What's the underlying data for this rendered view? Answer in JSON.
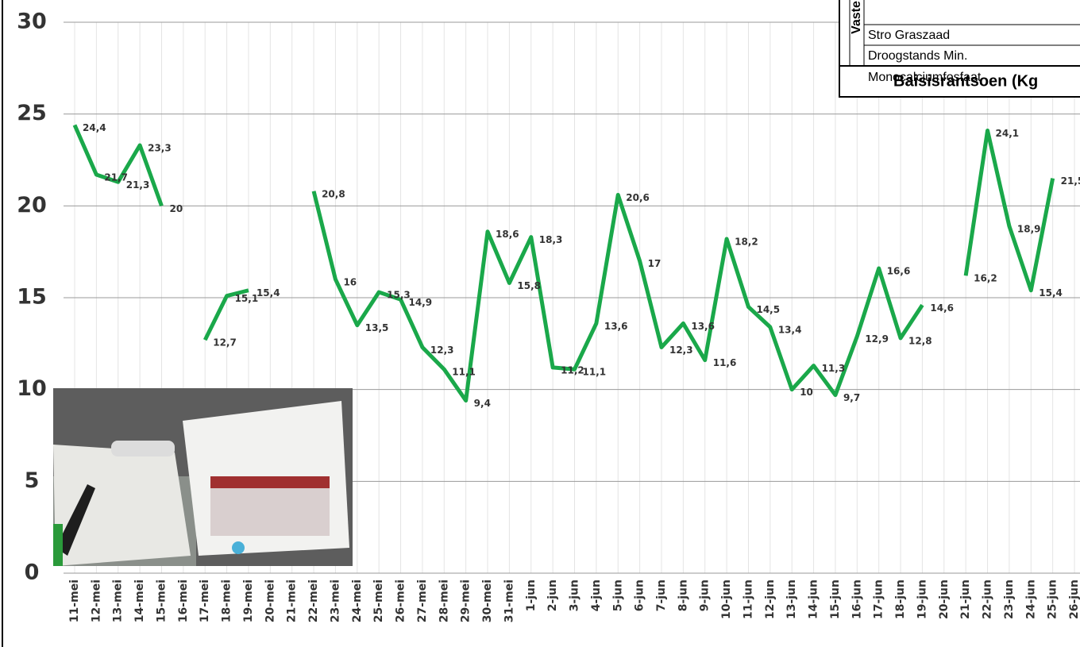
{
  "chart_data": {
    "type": "line",
    "categories": [
      "11-mei",
      "12-mei",
      "13-mei",
      "14-mei",
      "15-mei",
      "16-mei",
      "17-mei",
      "18-mei",
      "19-mei",
      "20-mei",
      "21-mei",
      "22-mei",
      "23-mei",
      "24-mei",
      "25-mei",
      "26-mei",
      "27-mei",
      "28-mei",
      "29-mei",
      "30-mei",
      "31-mei",
      "1-jun",
      "2-jun",
      "3-jun",
      "4-jun",
      "5-jun",
      "6-jun",
      "7-jun",
      "8-jun",
      "9-jun",
      "10-jun",
      "11-jun",
      "12-jun",
      "13-jun",
      "14-jun",
      "15-jun",
      "16-jun",
      "17-jun",
      "18-jun",
      "19-jun",
      "20-jun",
      "21-jun",
      "22-jun",
      "23-jun",
      "24-jun",
      "25-jun",
      "26-jun"
    ],
    "values": [
      24.4,
      21.7,
      21.3,
      23.3,
      20,
      null,
      12.7,
      15.1,
      15.4,
      null,
      null,
      20.8,
      16,
      13.5,
      15.3,
      14.9,
      12.3,
      11.1,
      9.4,
      18.6,
      15.8,
      18.3,
      11.2,
      11.1,
      13.6,
      20.6,
      17,
      12.3,
      13.6,
      11.6,
      18.2,
      14.5,
      13.4,
      10,
      11.3,
      9.7,
      12.9,
      16.6,
      12.8,
      14.6,
      null,
      16.2,
      24.1,
      18.9,
      15.4,
      21.5,
      null
    ],
    "value_labels": [
      "24,4",
      "21,7",
      "21,3",
      "23,3",
      "20",
      null,
      "12,7",
      "15,1",
      "15,4",
      null,
      null,
      "20,8",
      "16",
      "13,5",
      "15,3",
      "14,9",
      "12,3",
      "11,1",
      "9,4",
      "18,6",
      "15,8",
      "18,3",
      "11,2",
      "11,1",
      "13,6",
      "20,6",
      "17",
      "12,3",
      "13,6",
      "11,6",
      "18,2",
      "14,5",
      "13,4",
      "10",
      "11,3",
      "9,7",
      "12,9",
      "16,6",
      "12,8",
      "14,6",
      null,
      "16,2",
      "24,1",
      "18,9",
      "15,4",
      "21,5",
      null
    ],
    "color": "#1aa84a",
    "ylim": [
      0,
      30
    ],
    "yticks": [
      0,
      5,
      10,
      15,
      20,
      25,
      30
    ],
    "grid": true
  },
  "overlay_table": {
    "side_label": "Vaste",
    "rows": [
      "Stro Graszaad",
      "Droogstands Min.",
      "Monocalciumfosfaat"
    ],
    "footer": "Baisisrantsoen (Kg"
  }
}
